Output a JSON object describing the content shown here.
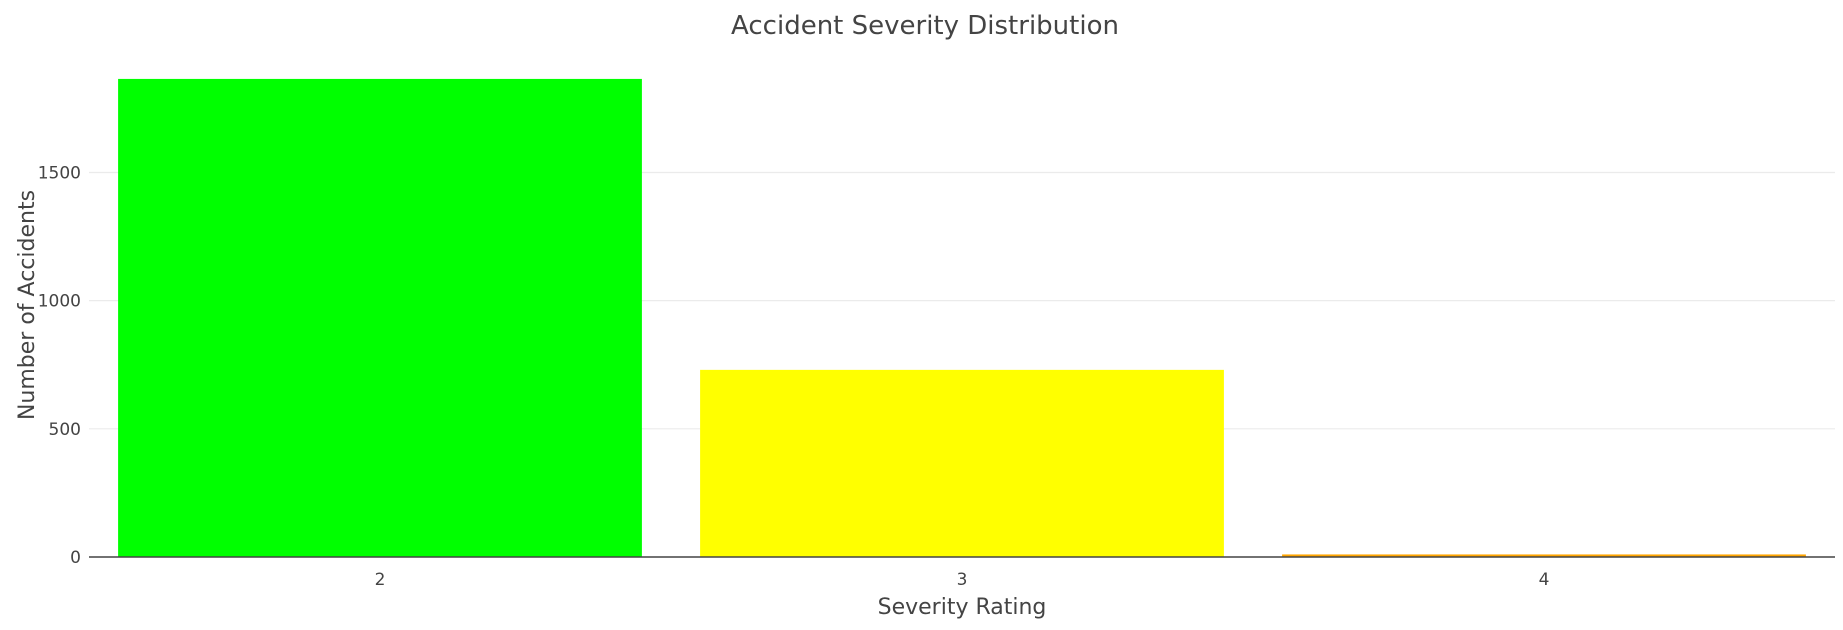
{
  "chart_data": {
    "type": "bar",
    "title": "Accident Severity Distribution",
    "xlabel": "Severity Rating",
    "ylabel": "Number of Accidents",
    "categories": [
      "2",
      "3",
      "4"
    ],
    "values": [
      1865,
      730,
      10
    ],
    "colors": [
      "#00ff00",
      "#ffff00",
      "#ffa500"
    ],
    "ylim": [
      0,
      1970
    ],
    "yticks": [
      0,
      500,
      1000,
      1500
    ],
    "grid": true,
    "legend": false
  }
}
